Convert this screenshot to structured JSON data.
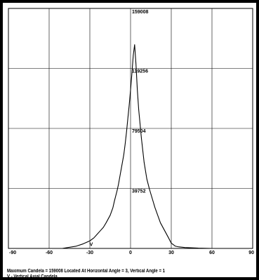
{
  "chart_data": {
    "type": "line",
    "x_ticks": [
      -90,
      -60,
      -30,
      0,
      30,
      60,
      90
    ],
    "y_ticks": [
      39752,
      79504,
      119256,
      159008
    ],
    "xlim": [
      -90,
      90
    ],
    "ylim": [
      0,
      159008
    ],
    "grid": true,
    "series": [
      {
        "x": [
          -90,
          -60,
          -50,
          -40,
          -35,
          -30,
          -27,
          -25,
          -22,
          -20,
          -18,
          -15,
          -13,
          -12,
          -11,
          -10,
          -9,
          -8,
          -7,
          -6,
          -5,
          -4,
          -3,
          -2,
          -1,
          0,
          1,
          2,
          3,
          4,
          5,
          6,
          8,
          10,
          12,
          14,
          16,
          18,
          20,
          22,
          25,
          28,
          30,
          33,
          35,
          40,
          50,
          60,
          90
        ],
        "y": [
          0,
          0,
          60,
          1500,
          3000,
          5000,
          7000,
          9000,
          12000,
          14000,
          17000,
          22000,
          27000,
          31000,
          34500,
          38000,
          42000,
          47000,
          52000,
          57000,
          62000,
          69000,
          77000,
          86000,
          95000,
          105000,
          116000,
          128000,
          135000,
          122000,
          105000,
          92000,
          73000,
          57000,
          46000,
          39000,
          33000,
          27000,
          22000,
          17000,
          12000,
          7000,
          3500,
          1500,
          1100,
          600,
          200,
          0,
          0
        ]
      }
    ],
    "annotations": [
      {
        "text": "V",
        "x": -29,
        "y": 1200
      }
    ]
  },
  "footer": {
    "line1": "Maximum Candela = 159008   Located At Horizontal Angle = 3, Vertical Angle = 1",
    "line2": "V - Vertical Axial Candela"
  }
}
